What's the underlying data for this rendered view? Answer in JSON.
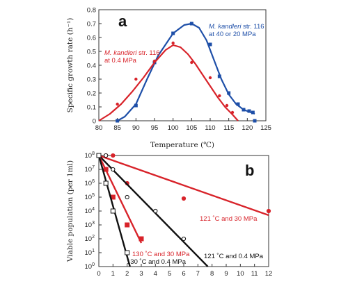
{
  "colors": {
    "red": "#d8232a",
    "blue": "#1e4fa8",
    "black": "#111111"
  },
  "chart_data": [
    {
      "type": "line",
      "panel_label": "a",
      "xlabel": "Temperature (℃)",
      "ylabel": "Specific growth rate (h⁻¹)",
      "xlim": [
        80,
        125
      ],
      "ylim": [
        0,
        0.8
      ],
      "xticks": [
        80,
        85,
        90,
        95,
        100,
        105,
        110,
        115,
        120,
        125
      ],
      "yticks": [
        0,
        0.1,
        0.2,
        0.3,
        0.4,
        0.5,
        0.6,
        0.7,
        0.8
      ],
      "annotations": [
        {
          "series": 0,
          "italic": "M. kandleri",
          "rest": " str. 116",
          "line2": "at 40 or 20 MPa"
        },
        {
          "series": 1,
          "italic": "M. kandleri",
          "rest": " str. 116",
          "line2": "at 0.4 MPa"
        }
      ],
      "series": [
        {
          "name": "M. kandleri str. 116 at 40 or 20 MPa",
          "color": "blue",
          "marker": "square",
          "points": [
            [
              85,
              0.0
            ],
            [
              90,
              0.11
            ],
            [
              95,
              0.42
            ],
            [
              100,
              0.63
            ],
            [
              105,
              0.7
            ],
            [
              110,
              0.55
            ],
            [
              112.5,
              0.32
            ],
            [
              115,
              0.2
            ],
            [
              117.5,
              0.12
            ],
            [
              119,
              0.08
            ],
            [
              120.5,
              0.07
            ],
            [
              121.5,
              0.06
            ],
            [
              122,
              0.0
            ]
          ],
          "curve": [
            [
              85,
              0.0
            ],
            [
              87,
              0.03
            ],
            [
              90,
              0.12
            ],
            [
              93,
              0.3
            ],
            [
              96,
              0.47
            ],
            [
              100,
              0.63
            ],
            [
              103,
              0.69
            ],
            [
              105,
              0.7
            ],
            [
              107,
              0.67
            ],
            [
              109,
              0.58
            ],
            [
              111,
              0.44
            ],
            [
              113,
              0.3
            ],
            [
              115,
              0.19
            ],
            [
              117,
              0.12
            ],
            [
              119,
              0.08
            ],
            [
              121,
              0.06
            ],
            [
              122,
              0.05
            ]
          ]
        },
        {
          "name": "M. kandleri str. 116 at 0.4 MPa",
          "color": "red",
          "marker": "circle",
          "points": [
            [
              85,
              0.12
            ],
            [
              90,
              0.3
            ],
            [
              95,
              0.43
            ],
            [
              100,
              0.56
            ],
            [
              105,
              0.42
            ],
            [
              110,
              0.31
            ],
            [
              112.5,
              0.18
            ],
            [
              114.5,
              0.11
            ],
            [
              116,
              0.06
            ]
          ],
          "curve": [
            [
              80,
              0.0
            ],
            [
              83,
              0.05
            ],
            [
              86,
              0.12
            ],
            [
              89,
              0.21
            ],
            [
              92,
              0.31
            ],
            [
              95,
              0.42
            ],
            [
              98,
              0.51
            ],
            [
              100,
              0.545
            ],
            [
              102,
              0.53
            ],
            [
              104,
              0.48
            ],
            [
              106,
              0.41
            ],
            [
              108,
              0.33
            ],
            [
              110,
              0.25
            ],
            [
              112,
              0.17
            ],
            [
              114,
              0.1
            ],
            [
              116,
              0.045
            ],
            [
              117.5,
              0.0
            ]
          ]
        }
      ]
    },
    {
      "type": "scatter",
      "panel_label": "b",
      "xlabel": "",
      "ylabel": "Viable population (per 1ml)",
      "xlim": [
        0,
        12
      ],
      "ylim_log10": [
        0,
        8
      ],
      "yscale": "log",
      "xticks": [
        0,
        1,
        2,
        3,
        4,
        5,
        6,
        7,
        8,
        9,
        10,
        11,
        12
      ],
      "ytick_exponents": [
        0,
        1,
        2,
        3,
        4,
        5,
        6,
        7,
        8
      ],
      "ytick_base": "10",
      "annotations": [
        {
          "series": 0,
          "text": "121 ˚C and 30 MPa"
        },
        {
          "series": 1,
          "text": "121 ˚C and 0.4 MPa"
        },
        {
          "series": 2,
          "text": "130 ˚C and 30 MPa"
        },
        {
          "series": 3,
          "text": "130 ˚C and 0.4 MPa"
        }
      ],
      "series": [
        {
          "name": "121 ˚C and 30 MPa",
          "color": "red",
          "marker": "circle",
          "filled": true,
          "points": [
            [
              0,
              8
            ],
            [
              0.5,
              8
            ],
            [
              1,
              8
            ],
            [
              2,
              6
            ],
            [
              6,
              4.9
            ],
            [
              12,
              4
            ]
          ],
          "fit": [
            [
              0,
              8
            ],
            [
              12,
              3.7
            ]
          ]
        },
        {
          "name": "121 ˚C and 0.4 MPa",
          "color": "black",
          "marker": "circle",
          "filled": false,
          "points": [
            [
              0,
              8
            ],
            [
              0.5,
              8
            ],
            [
              1,
              7
            ],
            [
              2,
              5
            ],
            [
              4,
              4
            ],
            [
              6,
              2
            ]
          ],
          "fit": [
            [
              0,
              8
            ],
            [
              7.7,
              0
            ]
          ]
        },
        {
          "name": "130 ˚C and 30 MPa",
          "color": "red",
          "marker": "square",
          "filled": true,
          "points": [
            [
              0,
              8
            ],
            [
              0.5,
              7
            ],
            [
              1,
              5
            ],
            [
              2,
              3
            ],
            [
              3,
              2
            ]
          ],
          "fit": [
            [
              0,
              8
            ],
            [
              3,
              1.7
            ]
          ]
        },
        {
          "name": "130 ˚C and 0.4 MPa",
          "color": "black",
          "marker": "square",
          "filled": false,
          "points": [
            [
              0,
              8
            ],
            [
              0.5,
              6
            ],
            [
              1,
              4
            ],
            [
              2,
              1
            ]
          ],
          "fit": [
            [
              0,
              8
            ],
            [
              2.2,
              0
            ]
          ]
        }
      ]
    }
  ]
}
